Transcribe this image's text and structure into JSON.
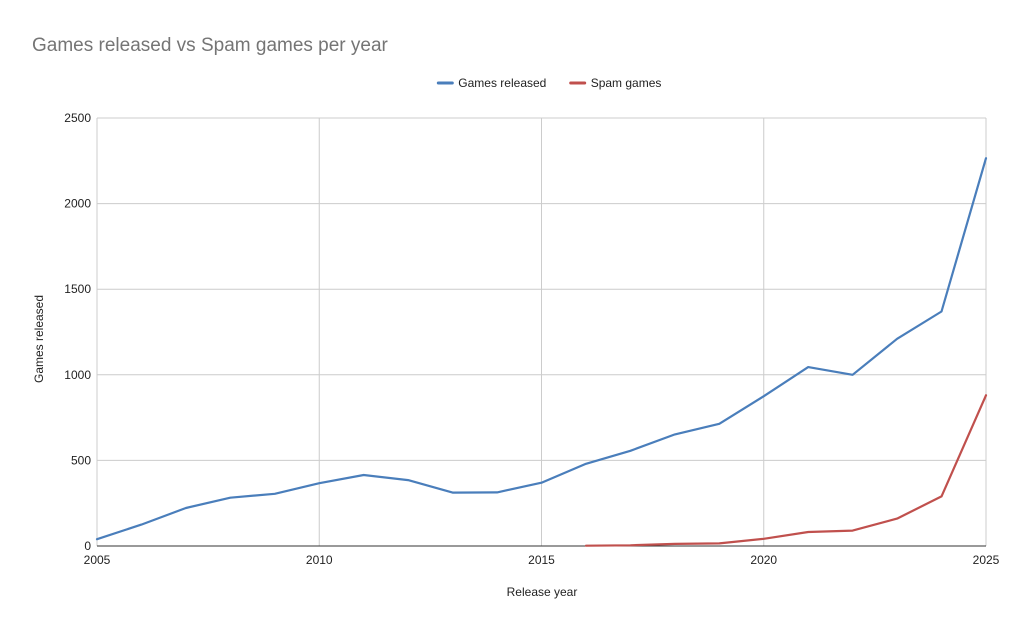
{
  "chart_data": {
    "type": "line",
    "title": "Games released vs Spam games per year",
    "xlabel": "Release year",
    "ylabel": "Games released",
    "xlim": [
      2005,
      2025
    ],
    "ylim": [
      0,
      2500
    ],
    "x_ticks": [
      "2005",
      "2010",
      "2015",
      "2020",
      "2025"
    ],
    "y_ticks": [
      "0",
      "500",
      "1000",
      "1500",
      "2000",
      "2500"
    ],
    "grid": true,
    "legend_position": "top",
    "series": [
      {
        "name": "Games released",
        "color": "#4a7ebb",
        "x": [
          2005,
          2006,
          2007,
          2008,
          2009,
          2010,
          2011,
          2012,
          2013,
          2014,
          2015,
          2016,
          2017,
          2018,
          2019,
          2020,
          2021,
          2022,
          2023,
          2024,
          2025
        ],
        "values": [
          40,
          125,
          222,
          282,
          305,
          367,
          415,
          385,
          312,
          313,
          370,
          480,
          556,
          652,
          714,
          875,
          1045,
          1000,
          1210,
          1370,
          2265
        ]
      },
      {
        "name": "Spam games",
        "color": "#c0504d",
        "x": [
          2016,
          2017,
          2018,
          2019,
          2020,
          2021,
          2022,
          2023,
          2024,
          2025
        ],
        "values": [
          2,
          4,
          12,
          15,
          42,
          82,
          90,
          160,
          290,
          880
        ]
      }
    ]
  }
}
